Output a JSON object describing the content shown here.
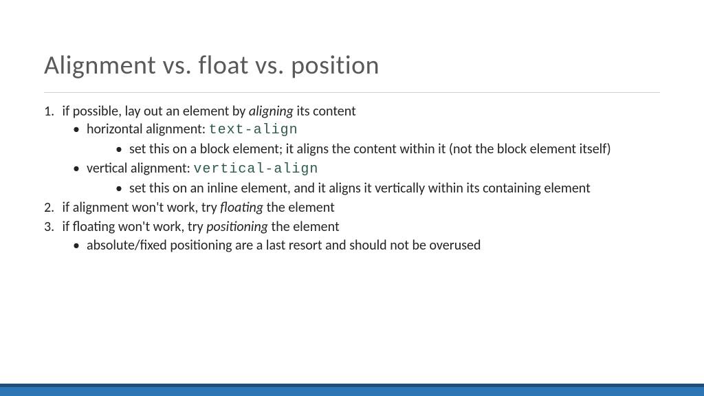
{
  "title": "Alignment vs. float vs. position",
  "colors": {
    "title_color": "#595959",
    "body_color": "#232323",
    "code_color": "#2f5b4b",
    "rule_color": "#d0d0d0",
    "footer_bar": "#2e75b6",
    "footer_top": "#1f4e79",
    "background": "#ffffff"
  },
  "typography": {
    "title_fontsize": 38,
    "title_weight": 300,
    "body_fontsize": 20,
    "code_fontfamily": "Consolas"
  },
  "list": {
    "item1": {
      "num": "1.",
      "pre": "if possible, lay out an element by ",
      "em": "aligning",
      "post": " its content",
      "sub": {
        "a": {
          "label": "horizontal alignment: ",
          "code": "text-align",
          "detail": "set this on a block element; it aligns the content within it (not the block element itself)"
        },
        "b": {
          "label": "vertical alignment: ",
          "code": "vertical-align",
          "detail": "set this on an inline element, and it aligns it vertically within its containing element"
        }
      }
    },
    "item2": {
      "num": "2.",
      "pre": "if alignment won't work, try ",
      "em": "floating",
      "post": " the element"
    },
    "item3": {
      "num": "3.",
      "pre": "if floating won't work, try ",
      "em": "positioning",
      "post": " the element",
      "sub": {
        "a": "absolute/fixed positioning are a last resort and should not be overused"
      }
    }
  }
}
